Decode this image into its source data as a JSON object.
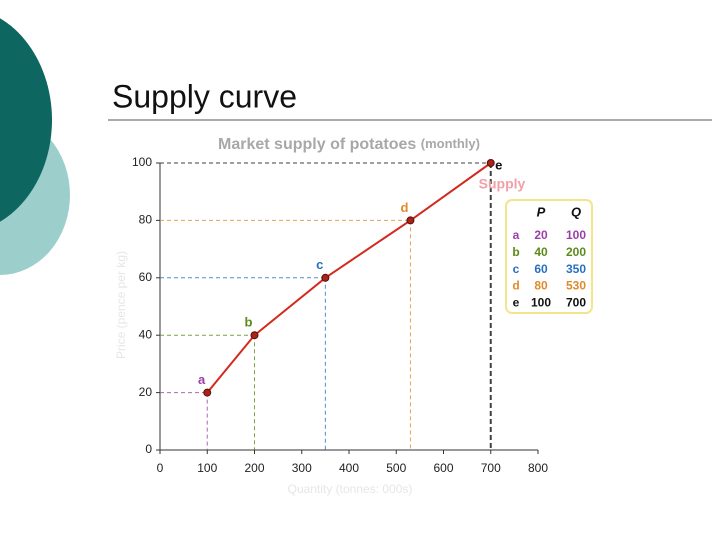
{
  "slide_title": "Supply curve",
  "chart_data": {
    "type": "line",
    "title": "Market supply of potatoes",
    "subtitle": "(monthly)",
    "x_label": "Quantity (tonnes: 000s)",
    "y_label": "Price (pence per kg)",
    "x": [
      100,
      200,
      350,
      530,
      700
    ],
    "series": [
      {
        "name": "Supply",
        "color": "#d42a1e",
        "values": [
          20,
          40,
          60,
          80,
          100
        ]
      }
    ],
    "point_labels": [
      "a",
      "b",
      "c",
      "d",
      "e"
    ],
    "point_label_colors": [
      "#9b3fa6",
      "#5c8a1a",
      "#2a6fbf",
      "#e08a2a",
      "#111111"
    ],
    "table_headers": [
      "P",
      "Q"
    ],
    "xlim": [
      0,
      800
    ],
    "ylim": [
      0,
      100
    ],
    "xticks": [
      0,
      100,
      200,
      300,
      400,
      500,
      600,
      700,
      800
    ],
    "yticks": [
      0,
      20,
      40,
      60,
      80,
      100
    ]
  }
}
